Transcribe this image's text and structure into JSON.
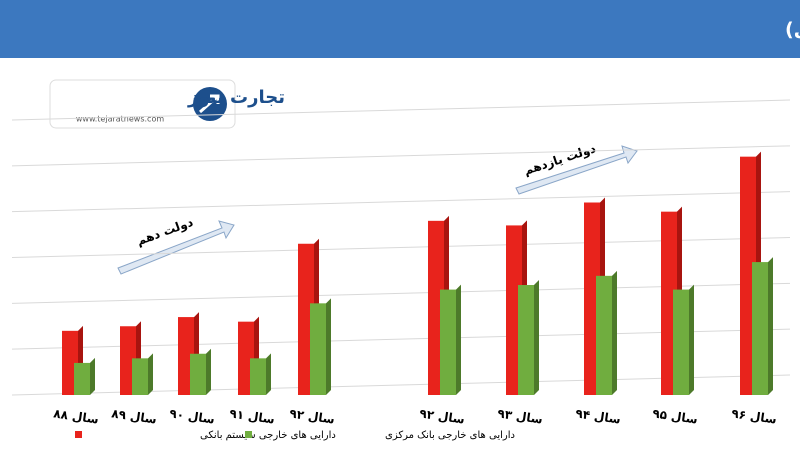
{
  "chart_data": {
    "type": "bar",
    "title": "دارایی‌های خارجی سیستم بانکی و بانک مرکزی (هزار میلیارد ریال)",
    "logo": "تجارت نیوز",
    "logo_url": "www.tejaratnews.com",
    "annotations": [
      "دولت دهم",
      "دولت یازدهم"
    ],
    "categories": [
      "سال ۸۸",
      "سال ۸۹",
      "سال ۹۰",
      "سال ۹۱",
      "سال ۹۲",
      "سال ۹۲",
      "سال ۹۳",
      "سال ۹۴",
      "سال ۹۵",
      "سال ۹۶"
    ],
    "series": [
      {
        "name": "دارایی های خارجی سیستم بانکی",
        "color": "#e8231c",
        "values": [
          140,
          150,
          170,
          160,
          330,
          380,
          370,
          420,
          400,
          520
        ]
      },
      {
        "name": "دارایی های خارجی بانک مرکزی",
        "color": "#70ad3f",
        "values": [
          70,
          80,
          90,
          80,
          200,
          230,
          240,
          260,
          230,
          290
        ]
      }
    ],
    "ylim": [
      0,
      600
    ],
    "yticks": [
      0,
      100,
      200,
      300,
      400,
      500,
      600
    ],
    "grid": true
  }
}
